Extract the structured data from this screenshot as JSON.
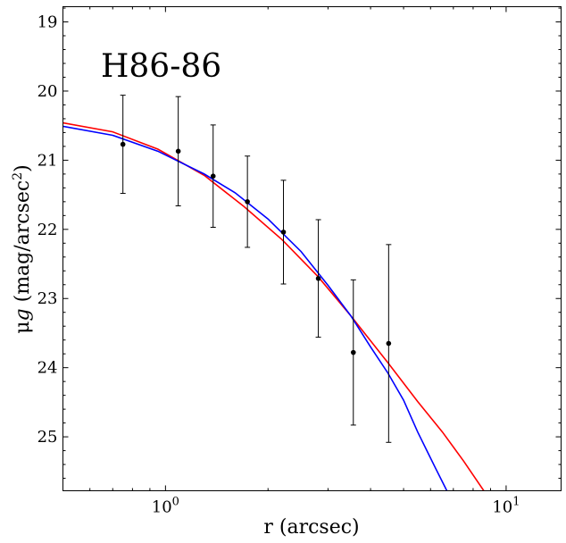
{
  "chart_data": {
    "type": "scatter",
    "annotation": "H86-86",
    "xlabel": "r (arcsec)",
    "ylabel": "μ_g (mag/arcsec²)",
    "xscale": "log",
    "xlim": [
      0.5,
      14.5
    ],
    "ylim": [
      25.78,
      18.78
    ],
    "y_inverted": true,
    "x_major_ticks": [
      1,
      10
    ],
    "x_major_labels": [
      "10^0",
      "10^1"
    ],
    "y_ticks": [
      19,
      20,
      21,
      22,
      23,
      24,
      25
    ],
    "y_tick_labels": [
      "19",
      "20",
      "21",
      "22",
      "23",
      "24",
      "25"
    ],
    "grid": false,
    "series": [
      {
        "kind": "errorbar",
        "color": "#000000",
        "points": [
          {
            "x": 0.75,
            "y": 20.77,
            "yerr": 0.71
          },
          {
            "x": 1.09,
            "y": 20.87,
            "yerr": 0.79
          },
          {
            "x": 1.38,
            "y": 21.23,
            "yerr": 0.74
          },
          {
            "x": 1.74,
            "y": 21.6,
            "yerr": 0.66
          },
          {
            "x": 2.22,
            "y": 22.04,
            "yerr": 0.75
          },
          {
            "x": 2.81,
            "y": 22.71,
            "yerr": 0.85
          },
          {
            "x": 3.56,
            "y": 23.78,
            "yerr": 1.05
          },
          {
            "x": 4.52,
            "y": 23.65,
            "yerr": 1.43
          }
        ]
      },
      {
        "kind": "line",
        "color": "#ff0000",
        "points": [
          [
            0.5,
            20.46
          ],
          [
            0.7,
            20.59
          ],
          [
            0.95,
            20.84
          ],
          [
            1.3,
            21.22
          ],
          [
            1.7,
            21.67
          ],
          [
            2.2,
            22.15
          ],
          [
            2.8,
            22.68
          ],
          [
            3.5,
            23.25
          ],
          [
            4.5,
            23.93
          ],
          [
            5.5,
            24.49
          ],
          [
            6.5,
            24.93
          ],
          [
            7.5,
            25.35
          ],
          [
            8.6,
            25.78
          ]
        ]
      },
      {
        "kind": "line",
        "color": "#0000ff",
        "points": [
          [
            0.5,
            20.51
          ],
          [
            0.7,
            20.64
          ],
          [
            0.95,
            20.87
          ],
          [
            1.3,
            21.2
          ],
          [
            1.6,
            21.47
          ],
          [
            2.0,
            21.85
          ],
          [
            2.5,
            22.32
          ],
          [
            3.0,
            22.81
          ],
          [
            3.5,
            23.25
          ],
          [
            4.0,
            23.7
          ],
          [
            4.5,
            24.08
          ],
          [
            5.0,
            24.47
          ],
          [
            5.5,
            24.93
          ],
          [
            6.2,
            25.45
          ],
          [
            6.7,
            25.78
          ]
        ]
      }
    ]
  }
}
